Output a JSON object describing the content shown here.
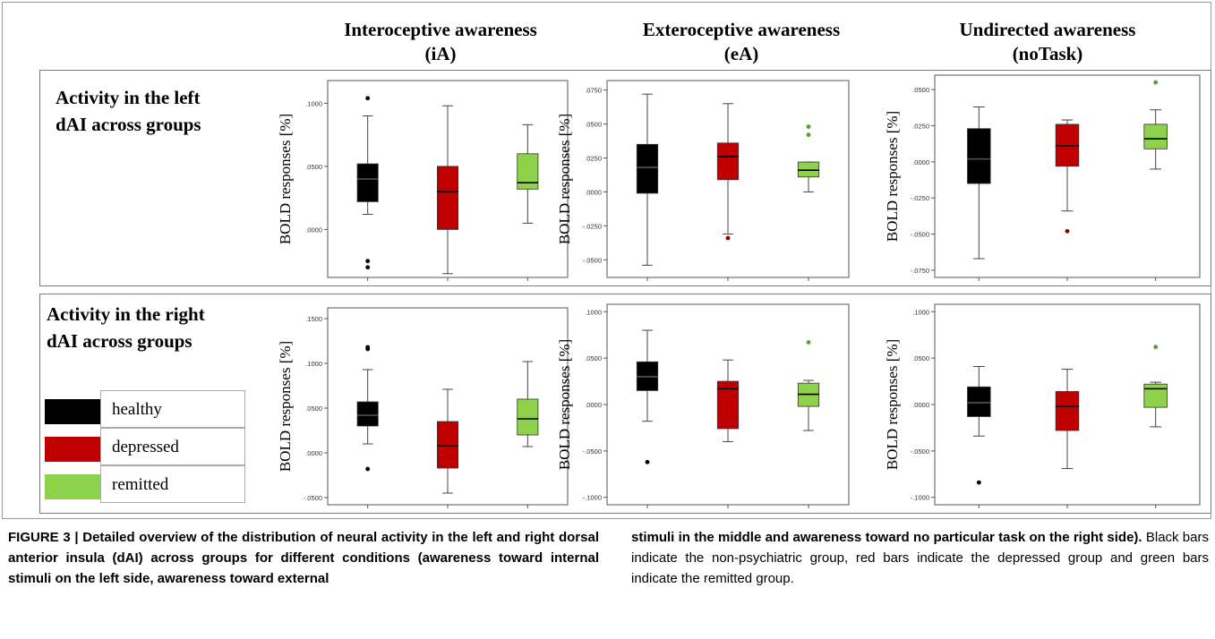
{
  "columns": [
    {
      "line1": "Interoceptive awareness",
      "line2": "(iA)"
    },
    {
      "line1": "Exteroceptive awareness",
      "line2": "(eA)"
    },
    {
      "line1": "Undirected awareness",
      "line2": "(noTask)"
    }
  ],
  "rows": [
    {
      "line1": "Activity in the left",
      "line2": "dAI across groups"
    },
    {
      "line1": "Activity in the right",
      "line2": "dAI across groups"
    }
  ],
  "legend": [
    {
      "label": "healthy",
      "color": "#000000"
    },
    {
      "label": "depressed",
      "color": "#c00000"
    },
    {
      "label": "remitted",
      "color": "#8ed14a"
    }
  ],
  "ylabel": "BOLD responses [%]",
  "caption": {
    "figure_label": "FIGURE 3 | ",
    "bold_text": "Detailed overview of the distribution of neural activity in the left and right dorsal anterior insula (dAI) across groups for different conditions (awareness toward internal stimuli on the left side, awareness toward external stimuli in the middle and awareness toward no particular task on the right side).",
    "bold_left": "Detailed overview of the distribution of neural activity in the left and right dorsal anterior insula (dAI) across groups for different conditions (awareness toward internal stimuli on the left side, awareness toward external",
    "bold_right": "stimuli in the middle and awareness toward no particular task on the right side).",
    "normal_text": " Black bars indicate the non-psychiatric group, red bars indicate the depressed group and green bars indicate the remitted group."
  },
  "chart_data": [
    {
      "type": "box",
      "panel": "left-dAI-iA",
      "ylabel": "BOLD responses [%]",
      "yticks": [
        {
          "v": 0.1,
          "t": ".1000"
        },
        {
          "v": 0.05,
          "t": ".0500"
        },
        {
          "v": 0.0,
          "t": ".0000"
        }
      ],
      "ylim": [
        -0.038,
        0.118
      ],
      "groups": [
        {
          "name": "healthy",
          "color": "#000000",
          "whislo": 0.012,
          "q1": 0.022,
          "med": 0.04,
          "q3": 0.052,
          "whishi": 0.09,
          "outliers": [
            0.104,
            -0.025,
            -0.03
          ]
        },
        {
          "name": "depressed",
          "color": "#c00000",
          "whislo": -0.035,
          "q1": 0.0,
          "med": 0.03,
          "q3": 0.05,
          "whishi": 0.098,
          "outliers": []
        },
        {
          "name": "remitted",
          "color": "#8ed14a",
          "whislo": 0.005,
          "q1": 0.032,
          "med": 0.037,
          "q3": 0.06,
          "whishi": 0.083,
          "outliers": []
        }
      ]
    },
    {
      "type": "box",
      "panel": "left-dAI-eA",
      "ylabel": "BOLD responses [%]",
      "yticks": [
        {
          "v": 0.075,
          "t": ".0750"
        },
        {
          "v": 0.05,
          "t": ".0500"
        },
        {
          "v": 0.025,
          "t": ".0250"
        },
        {
          "v": 0.0,
          "t": ".0000"
        },
        {
          "v": -0.025,
          "t": "-.0250"
        },
        {
          "v": -0.05,
          "t": "-.0500"
        }
      ],
      "ylim": [
        -0.063,
        0.082
      ],
      "groups": [
        {
          "name": "healthy",
          "color": "#000000",
          "whislo": -0.054,
          "q1": -0.001,
          "med": 0.018,
          "q3": 0.035,
          "whishi": 0.072,
          "outliers": []
        },
        {
          "name": "depressed",
          "color": "#c00000",
          "whislo": -0.031,
          "q1": 0.009,
          "med": 0.026,
          "q3": 0.036,
          "whishi": 0.065,
          "outliers": [
            -0.034
          ]
        },
        {
          "name": "remitted",
          "color": "#8ed14a",
          "whislo": 0.0,
          "q1": 0.011,
          "med": 0.016,
          "q3": 0.022,
          "whishi": 0.022,
          "outliers": [
            0.042,
            0.048
          ]
        }
      ]
    },
    {
      "type": "box",
      "panel": "left-dAI-noTask",
      "ylabel": "BOLD responses [%]",
      "yticks": [
        {
          "v": 0.05,
          "t": ".0500"
        },
        {
          "v": 0.025,
          "t": ".0250"
        },
        {
          "v": 0.0,
          "t": ".0000"
        },
        {
          "v": -0.025,
          "t": "-.0250"
        },
        {
          "v": -0.05,
          "t": "-.0500"
        },
        {
          "v": -0.075,
          "t": "-.0750"
        }
      ],
      "ylim": [
        -0.08,
        0.06
      ],
      "groups": [
        {
          "name": "healthy",
          "color": "#000000",
          "whislo": -0.067,
          "q1": -0.015,
          "med": 0.002,
          "q3": 0.023,
          "whishi": 0.038,
          "outliers": []
        },
        {
          "name": "depressed",
          "color": "#c00000",
          "whislo": -0.034,
          "q1": -0.003,
          "med": 0.011,
          "q3": 0.026,
          "whishi": 0.029,
          "outliers": [
            -0.048
          ]
        },
        {
          "name": "remitted",
          "color": "#8ed14a",
          "whislo": -0.005,
          "q1": 0.009,
          "med": 0.016,
          "q3": 0.026,
          "whishi": 0.036,
          "outliers": [
            0.055
          ]
        }
      ]
    },
    {
      "type": "box",
      "panel": "right-dAI-iA",
      "ylabel": "BOLD responses [%]",
      "yticks": [
        {
          "v": 0.15,
          "t": ".1500"
        },
        {
          "v": 0.1,
          "t": ".1000"
        },
        {
          "v": 0.05,
          "t": ".0500"
        },
        {
          "v": 0.0,
          "t": ".0000"
        },
        {
          "v": -0.05,
          "t": "-.0500"
        }
      ],
      "ylim": [
        -0.058,
        0.162
      ],
      "groups": [
        {
          "name": "healthy",
          "color": "#000000",
          "whislo": 0.01,
          "q1": 0.03,
          "med": 0.042,
          "q3": 0.057,
          "whishi": 0.093,
          "outliers": [
            0.116,
            0.118,
            -0.018
          ]
        },
        {
          "name": "depressed",
          "color": "#c00000",
          "whislo": -0.045,
          "q1": -0.017,
          "med": 0.008,
          "q3": 0.035,
          "whishi": 0.071,
          "outliers": []
        },
        {
          "name": "remitted",
          "color": "#8ed14a",
          "whislo": 0.007,
          "q1": 0.02,
          "med": 0.038,
          "q3": 0.06,
          "whishi": 0.102,
          "outliers": []
        }
      ]
    },
    {
      "type": "box",
      "panel": "right-dAI-eA",
      "ylabel": "BOLD responses [%]",
      "yticks": [
        {
          "v": 0.1,
          "t": ".1000"
        },
        {
          "v": 0.05,
          "t": ".0500"
        },
        {
          "v": 0.0,
          "t": ".0000"
        },
        {
          "v": -0.05,
          "t": "-.0500"
        },
        {
          "v": -0.1,
          "t": "-.1000"
        }
      ],
      "ylim": [
        -0.108,
        0.108
      ],
      "groups": [
        {
          "name": "healthy",
          "color": "#000000",
          "whislo": -0.018,
          "q1": 0.015,
          "med": 0.03,
          "q3": 0.046,
          "whishi": 0.08,
          "outliers": [
            -0.062
          ]
        },
        {
          "name": "depressed",
          "color": "#c00000",
          "whislo": -0.04,
          "q1": -0.026,
          "med": 0.017,
          "q3": 0.025,
          "whishi": 0.048,
          "outliers": []
        },
        {
          "name": "remitted",
          "color": "#8ed14a",
          "whislo": -0.028,
          "q1": -0.002,
          "med": 0.011,
          "q3": 0.023,
          "whishi": 0.026,
          "outliers": [
            0.067
          ]
        }
      ]
    },
    {
      "type": "box",
      "panel": "right-dAI-noTask",
      "ylabel": "BOLD responses [%]",
      "yticks": [
        {
          "v": 0.1,
          "t": ".1000"
        },
        {
          "v": 0.05,
          "t": ".0500"
        },
        {
          "v": 0.0,
          "t": ".0000"
        },
        {
          "v": -0.05,
          "t": "-.0500"
        },
        {
          "v": -0.1,
          "t": "-.1000"
        }
      ],
      "ylim": [
        -0.108,
        0.108
      ],
      "groups": [
        {
          "name": "healthy",
          "color": "#000000",
          "whislo": -0.034,
          "q1": -0.013,
          "med": 0.002,
          "q3": 0.019,
          "whishi": 0.041,
          "outliers": [
            -0.084
          ]
        },
        {
          "name": "depressed",
          "color": "#c00000",
          "whislo": -0.069,
          "q1": -0.028,
          "med": -0.002,
          "q3": 0.014,
          "whishi": 0.038,
          "outliers": []
        },
        {
          "name": "remitted",
          "color": "#8ed14a",
          "whislo": -0.024,
          "q1": -0.003,
          "med": 0.017,
          "q3": 0.022,
          "whishi": 0.024,
          "outliers": [
            0.062
          ]
        }
      ]
    }
  ]
}
